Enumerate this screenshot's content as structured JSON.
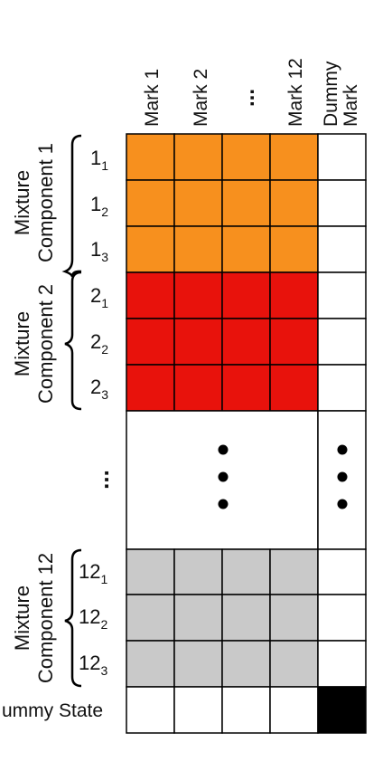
{
  "colors": {
    "mixture_1": "#F7901E",
    "mixture_2": "#E8120C",
    "mixture_12": "#C9C9C9",
    "dummy_state_dummy_mark": "#000000",
    "empty": "#FFFFFF",
    "grid_line": "#000000"
  },
  "columns": {
    "mark_1": "Mark 1",
    "mark_2": "Mark 2",
    "ellipsis": "...",
    "mark_12": "Mark 12",
    "dummy_line1": "Dummy",
    "dummy_line2": "Mark"
  },
  "groups": {
    "mixture_1": {
      "line1": "Mixture",
      "line2": "Component 1"
    },
    "mixture_2": {
      "line1": "Mixture",
      "line2": "Component 2"
    },
    "mixture_12": {
      "line1": "Mixture",
      "line2": "Component 12"
    },
    "ellipsis": "..."
  },
  "rows": {
    "r1_1": {
      "base": "1",
      "sub": "1"
    },
    "r1_2": {
      "base": "1",
      "sub": "2"
    },
    "r1_3": {
      "base": "1",
      "sub": "3"
    },
    "r2_1": {
      "base": "2",
      "sub": "1"
    },
    "r2_2": {
      "base": "2",
      "sub": "2"
    },
    "r2_3": {
      "base": "2",
      "sub": "3"
    },
    "r12_1": {
      "base": "12",
      "sub": "1"
    },
    "r12_2": {
      "base": "12",
      "sub": "2"
    },
    "r12_3": {
      "base": "12",
      "sub": "3"
    },
    "dummy_state": "ummy State"
  }
}
